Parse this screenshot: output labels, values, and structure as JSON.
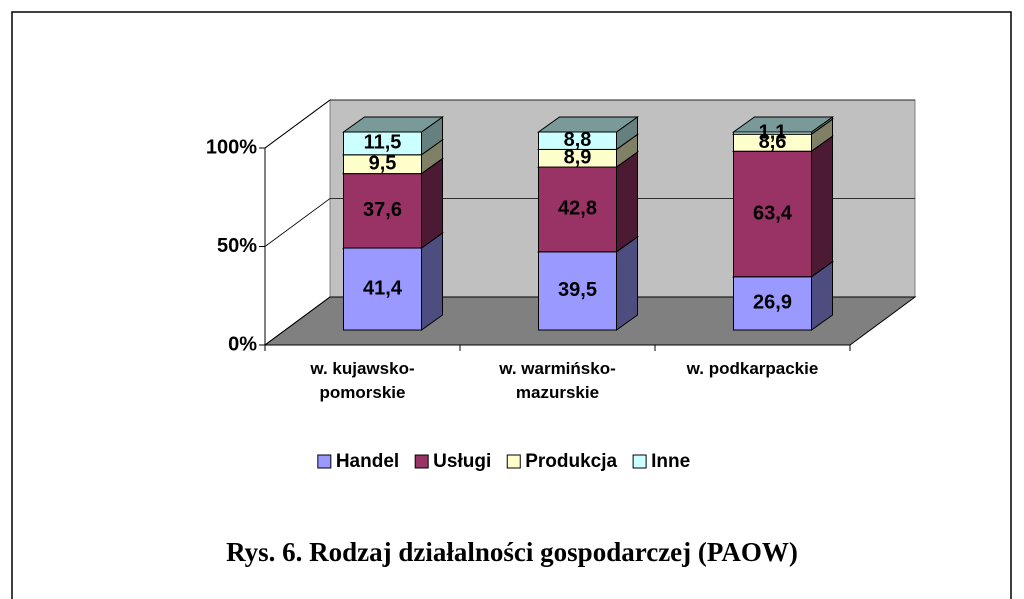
{
  "chart_data": {
    "type": "bar",
    "stacked": true,
    "title": "Rys. 6. Rodzaj działalności gospodarczej (PAOW)",
    "categories": [
      "w. kujawsko-pomorskie",
      "w. warmińsko-mazurskie",
      "w. podkarpackie"
    ],
    "series": [
      {
        "name": "Handel",
        "color": "#9999ff",
        "values": [
          41.4,
          39.5,
          26.9
        ],
        "value_labels": [
          "41,4",
          "39,5",
          "26,9"
        ]
      },
      {
        "name": "Usługi",
        "color": "#993366",
        "values": [
          37.6,
          42.8,
          63.4
        ],
        "value_labels": [
          "37,6",
          "42,8",
          "63,4"
        ]
      },
      {
        "name": "Produkcja",
        "color": "#ffffcc",
        "values": [
          9.5,
          8.9,
          8.6
        ],
        "value_labels": [
          "9,5",
          "8,9",
          "8,6"
        ]
      },
      {
        "name": "Inne",
        "color": "#ccffff",
        "values": [
          11.5,
          8.8,
          1.1
        ],
        "value_labels": [
          "11,5",
          "8,8",
          "1,1"
        ]
      }
    ],
    "ylim": [
      0,
      100
    ],
    "yticks": [
      {
        "value": 0,
        "label": "0%"
      },
      {
        "value": 50,
        "label": "50%"
      },
      {
        "value": 100,
        "label": "100%"
      }
    ],
    "grid": true,
    "legend": "bottom"
  }
}
